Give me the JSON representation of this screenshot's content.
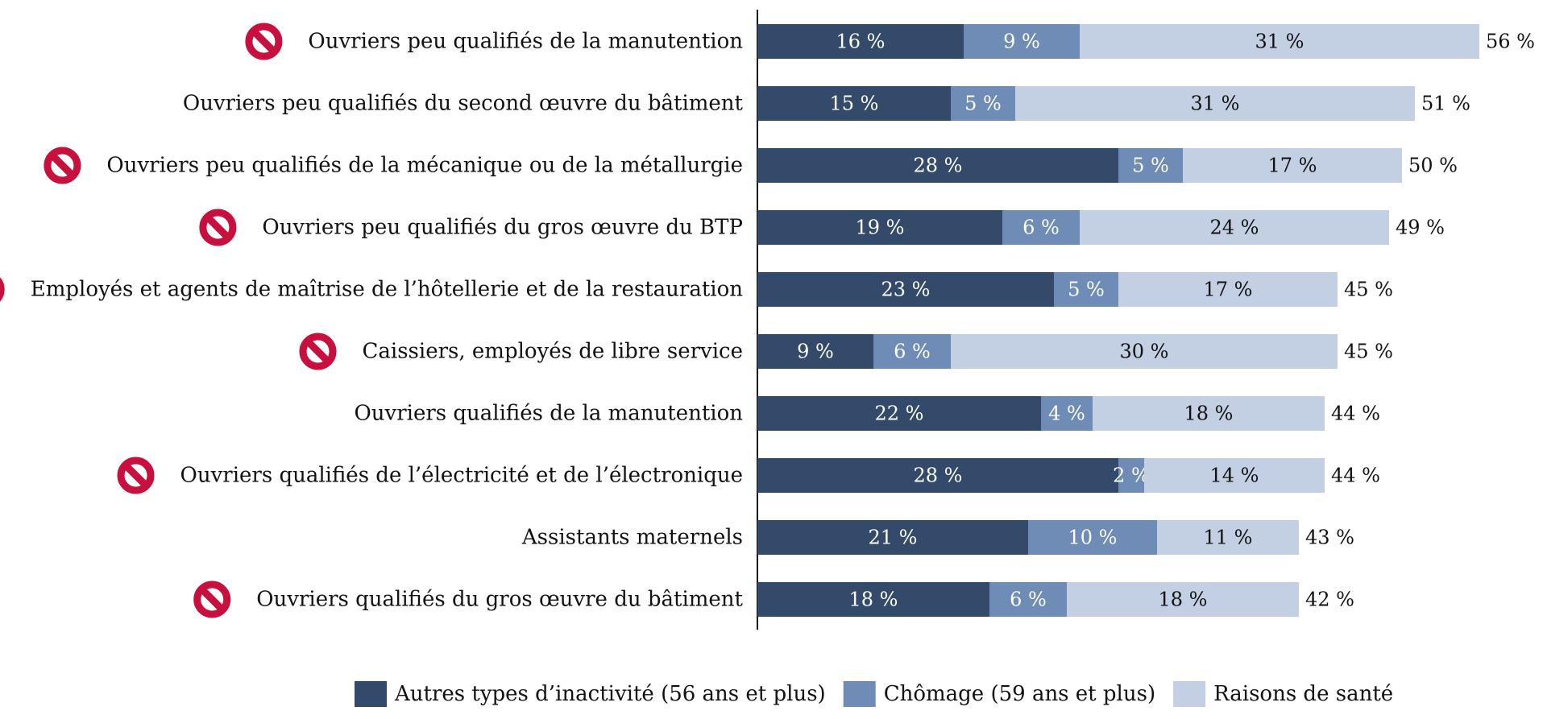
{
  "chart_data": {
    "type": "bar",
    "orientation": "horizontal",
    "stacked": true,
    "categories": [
      "Ouvriers peu qualifiés de la manutention",
      "Ouvriers peu qualifiés du second œuvre du bâtiment",
      "Ouvriers peu qualifiés de la mécanique ou de la métallurgie",
      "Ouvriers peu qualifiés du gros œuvre du BTP",
      "Employés et agents de maîtrise de l’hôtellerie et de la restauration",
      "Caissiers, employés de libre service",
      "Ouvriers qualifiés de la manutention",
      "Ouvriers qualifiés de l’électricité et de l’électronique",
      "Assistants maternels",
      "Ouvriers qualifiés du gros œuvre du bâtiment"
    ],
    "flagged": [
      true,
      false,
      true,
      true,
      true,
      true,
      false,
      true,
      false,
      true
    ],
    "series": [
      {
        "name": "Autres types d’inactivité (56 ans et plus)",
        "color": "#344a6b",
        "label_color": "#ffffff",
        "values": [
          16,
          15,
          28,
          19,
          23,
          9,
          22,
          28,
          21,
          18
        ],
        "labels": [
          "16 %",
          "15 %",
          "28 %",
          "19 %",
          "23 %",
          "9 %",
          "22 %",
          "28 %",
          "21 %",
          "18 %"
        ]
      },
      {
        "name": "Chômage (59 ans et plus)",
        "color": "#6f8cb7",
        "label_color": "#ffffff",
        "values": [
          9,
          5,
          5,
          6,
          5,
          6,
          4,
          2,
          10,
          6
        ],
        "labels": [
          "9 %",
          "5 %",
          "5 %",
          "6 %",
          "5 %",
          "6 %",
          "4 %",
          "2 %",
          "10 %",
          "6 %"
        ]
      },
      {
        "name": "Raisons de santé",
        "color": "#c3cfe2",
        "label_color": "#111111",
        "values": [
          31,
          31,
          17,
          24,
          17,
          30,
          18,
          14,
          11,
          18
        ],
        "labels": [
          "31 %",
          "31 %",
          "17 %",
          "24 %",
          "17 %",
          "30 %",
          "18 %",
          "14 %",
          "11 %",
          "18 %"
        ]
      }
    ],
    "totals": [
      56,
      51,
      50,
      49,
      45,
      45,
      44,
      44,
      43,
      42
    ],
    "total_labels": [
      "56 %",
      "51 %",
      "50 %",
      "49 %",
      "45 %",
      "45 %",
      "44 %",
      "44 %",
      "43 %",
      "42 %"
    ],
    "xlim": [
      0,
      56
    ],
    "legend_position": "bottom",
    "flag_icon": "prohibited-icon",
    "flag_color": "#c8103e",
    "grid": false
  }
}
